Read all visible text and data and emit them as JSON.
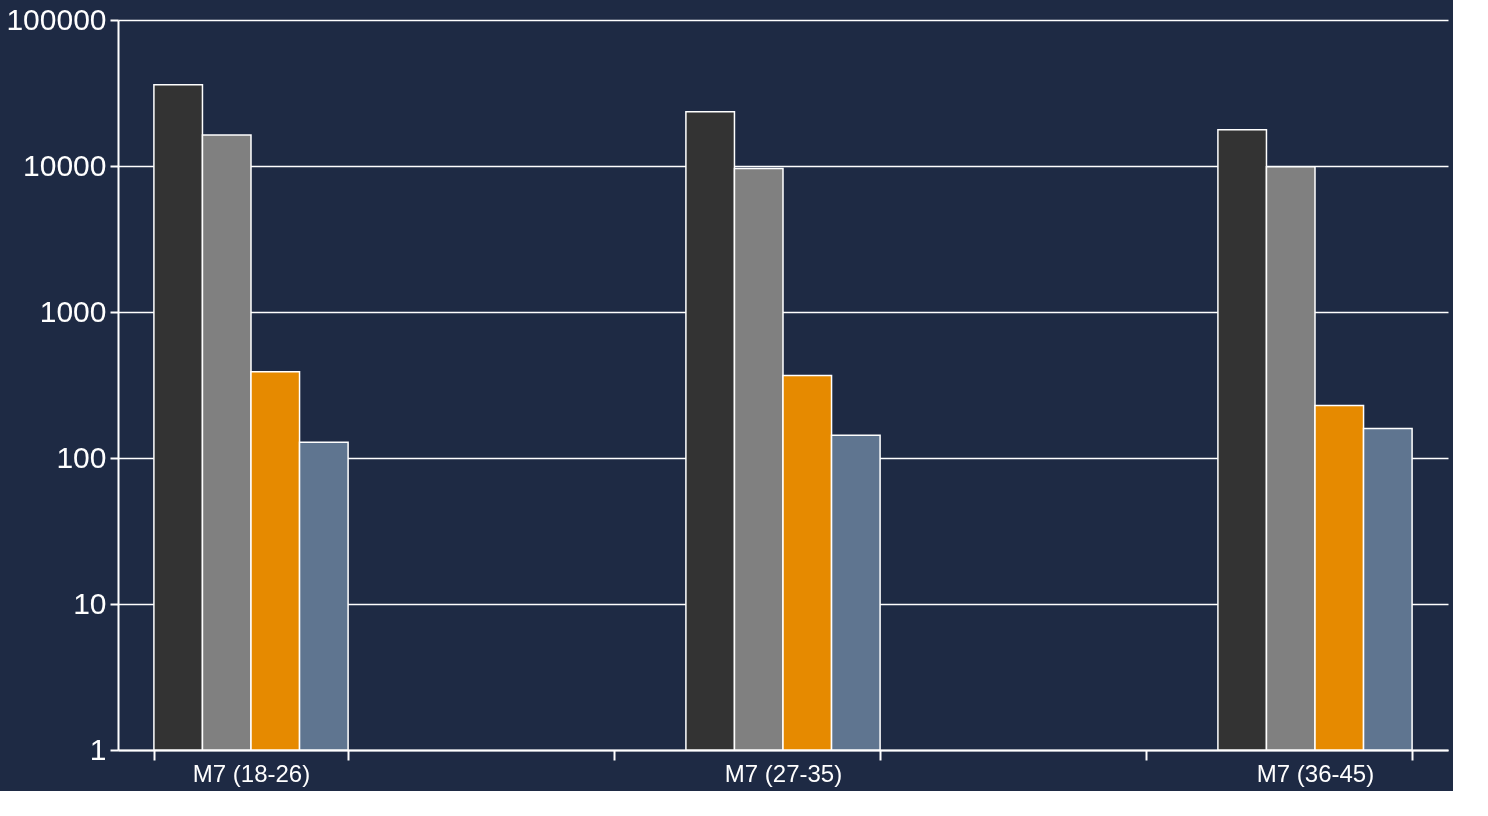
{
  "chart_data": {
    "type": "bar",
    "categories": [
      "M7 (18-26)",
      null,
      "M7 (27-35)",
      null,
      "M7 (36-45)"
    ],
    "series": [
      {
        "color": "#333333",
        "values": [
          36000,
          null,
          23500,
          null,
          17700
        ]
      },
      {
        "color": "#808080",
        "values": [
          16300,
          null,
          9600,
          null,
          9900
        ]
      },
      {
        "color": "#e68a00",
        "values": [
          390,
          null,
          367,
          null,
          229
        ]
      },
      {
        "color": "#5f7590",
        "values": [
          128,
          null,
          143,
          null,
          159
        ]
      }
    ],
    "log": true,
    "ylim": [
      1,
      100000
    ],
    "yticks": [
      1,
      10,
      100,
      1000,
      10000,
      100000
    ],
    "grid": "y",
    "legend": false
  }
}
